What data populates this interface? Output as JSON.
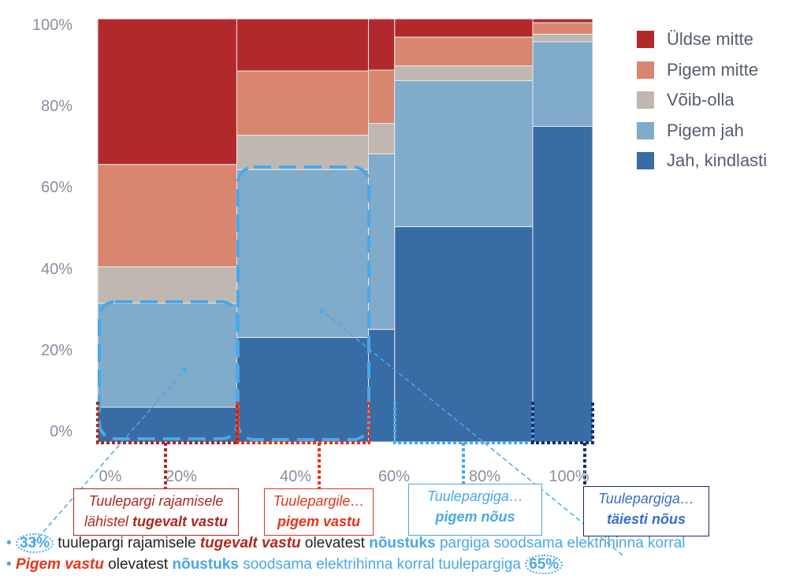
{
  "chart_data": {
    "type": "mosaic",
    "categories": [
      "Tuulepargi rajamisele lähistel tugevalt vastu",
      "Pigem vastu",
      "Võib-olla",
      "Pigem nõus",
      "Täiesti nõus"
    ],
    "column_widths_pct": [
      28.1,
      26.6,
      5.3,
      27.9,
      12.1
    ],
    "series": [
      {
        "name": "Jah, kindlasti",
        "color": "#386ca5",
        "values": [
          8.2,
          24.7,
          26.6,
          50.9,
          74.6
        ]
      },
      {
        "name": "Pigem jah",
        "color": "#80abcb",
        "values": [
          24.6,
          39.7,
          41.5,
          34.5,
          20.0
        ]
      },
      {
        "name": "Võib-olla",
        "color": "#c0b7b1",
        "values": [
          8.6,
          8.1,
          7.2,
          3.5,
          1.8
        ]
      },
      {
        "name": "Pigem mitte",
        "color": "#d98670",
        "values": [
          24.2,
          15.2,
          12.6,
          6.8,
          2.7
        ]
      },
      {
        "name": "Üldse mitte",
        "color": "#b2292c",
        "values": [
          34.4,
          12.3,
          12.1,
          4.3,
          0.9
        ]
      }
    ],
    "y_ticks": [
      "0%",
      "20%",
      "40%",
      "60%",
      "80%",
      "100%"
    ],
    "x_ticks": [
      "0%",
      "20%",
      "40%",
      "60%",
      "80%",
      "100%"
    ],
    "ylim": [
      0,
      100
    ],
    "xlim": [
      0,
      100
    ],
    "legend_placement": "right"
  },
  "legend": [
    "Üldse mitte",
    "Pigem mitte",
    "Võib-olla",
    "Pigem jah",
    "Jah, kindlasti"
  ],
  "annotations": {
    "box1": {
      "l1": "Tuulepargi rajamisele",
      "l2a": "lähistel ",
      "l2b": "tugevalt vastu",
      "color": "#b0281f"
    },
    "box2": {
      "l1": "Tuulepargile…",
      "l2": "pigem vastu",
      "color": "#e8341c"
    },
    "box3": {
      "l1": "Tuulepargiga…",
      "l2": "pigem nõus",
      "color": "#4aa8e8"
    },
    "box4": {
      "l1": "Tuulepargiga…",
      "l2": "täiesti nõus",
      "color": "#1a2a6c"
    }
  },
  "notes": {
    "n1": {
      "bullet": "•",
      "pct": "33%",
      "a": " tuulepargi rajamisele ",
      "b": "tugevalt vastu",
      "c": " olevatest ",
      "d": "nõustuks",
      "e": " pargiga soodsama elektrihinna korral"
    },
    "n2": {
      "bullet": "•",
      "a": "Pigem vastu",
      "b": " olevatest ",
      "c": "nõustuks",
      "d": " soodsama elektrihinna korral tuulepargiga ",
      "pct": "65%"
    }
  }
}
